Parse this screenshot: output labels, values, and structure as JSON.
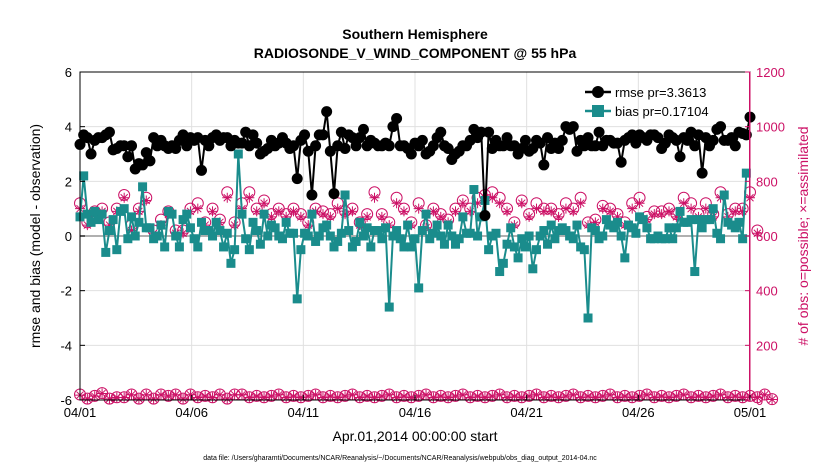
{
  "chart_data": {
    "type": "line",
    "title_line1": "Southern Hemisphere",
    "title_line2": "RADIOSONDE_V_WIND_COMPONENT @ 55 hPa",
    "xlabel": "Apr.01,2014 00:00:00 start",
    "ylabel_left": "rmse and bias (model - observation)",
    "ylabel_right": "# of obs: o=possible; ×=assimilated",
    "footnote": "data file: /Users/gharamti/Documents/NCAR/Reanalysis/~/Documents/NCAR/Reanalysis/webpub/obs_diag_output_2014-04.nc",
    "xlim": [
      0,
      30
    ],
    "x_ticks": [
      0,
      5,
      10,
      15,
      20,
      25,
      30
    ],
    "x_tick_labels": [
      "04/01",
      "04/06",
      "04/11",
      "04/16",
      "04/21",
      "04/26",
      "05/01"
    ],
    "ylim_left": [
      -6,
      6
    ],
    "y_ticks_left": [
      -6,
      -4,
      -2,
      0,
      2,
      4,
      6
    ],
    "y_tick_labels_left": [
      "-6",
      "-4",
      "-2",
      "0",
      "2",
      "4",
      "6"
    ],
    "ylim_right": [
      0,
      1200
    ],
    "y_ticks_right": [
      0,
      200,
      400,
      600,
      800,
      1000,
      1200
    ],
    "y_tick_labels_right": [
      "0",
      "200",
      "400",
      "600",
      "800",
      "1000",
      "1200"
    ],
    "grid": true,
    "legend_position": "top-right",
    "colors": {
      "rmse": "#000000",
      "bias": "#1a8c8c",
      "obs": "#cc1166",
      "zero_line": "#b0b0b0",
      "grid": "#e0e0e0",
      "axis": "#000000"
    },
    "series": [
      {
        "name": "rmse",
        "legend_label": "rmse pr=3.3613",
        "values": [
          3.35,
          3.7,
          3.6,
          3.0,
          3.5,
          3.6,
          3.6,
          3.7,
          3.8,
          3.15,
          3.2,
          3.3,
          3.3,
          2.9,
          3.3,
          2.45,
          2.65,
          2.6,
          3.05,
          2.75,
          3.6,
          3.3,
          3.5,
          3.3,
          3.2,
          3.3,
          3.2,
          3.5,
          3.7,
          3.3,
          3.6,
          3.5,
          3.6,
          2.4,
          3.5,
          3.3,
          3.6,
          3.7,
          3.5,
          3.6,
          3.6,
          3.3,
          3.5,
          3.4,
          3.4,
          3.8,
          3.3,
          3.7,
          3.4,
          3.0,
          3.1,
          3.2,
          3.5,
          3.3,
          3.4,
          3.6,
          3.4,
          3.2,
          3.3,
          2.1,
          3.5,
          3.7,
          3.1,
          1.5,
          3.3,
          3.7,
          3.7,
          4.55,
          3.1,
          1.55,
          3.3,
          3.8,
          3.2,
          3.7,
          3.6,
          3.3,
          3.6,
          3.9,
          3.3,
          3.5,
          3.4,
          3.3,
          3.3,
          3.4,
          3.3,
          4.0,
          4.3,
          3.3,
          3.3,
          3.2,
          3.0,
          3.4,
          3.3,
          3.5,
          3.0,
          3.1,
          3.3,
          3.6,
          3.8,
          3.3,
          3.2,
          2.8,
          3.0,
          3.1,
          3.3,
          3.3,
          3.5,
          3.9,
          3.6,
          3.8,
          0.75,
          3.8,
          3.2,
          3.5,
          3.3,
          3.3,
          3.6,
          3.3,
          3.3,
          3.0,
          3.2,
          3.5,
          3.1,
          3.2,
          3.5,
          3.4,
          2.6,
          3.6,
          3.2,
          3.4,
          3.2,
          3.5,
          4.0,
          3.9,
          4.0,
          3.1,
          3.5,
          3.3,
          3.6,
          3.3,
          3.3,
          3.8,
          3.3,
          3.5,
          3.5,
          3.4,
          3.4,
          2.7,
          3.5,
          3.6,
          3.7,
          3.4,
          3.7,
          3.6,
          3.5,
          3.7,
          3.7,
          3.6,
          3.2,
          3.4,
          3.7,
          3.6,
          3.5,
          2.9,
          3.6,
          3.5,
          3.8,
          3.3,
          3.7,
          2.3,
          3.6,
          3.3,
          3.5,
          3.9,
          4.0,
          3.5,
          3.5,
          3.6,
          3.3,
          3.8,
          3.75,
          3.7,
          4.35
        ]
      },
      {
        "name": "bias",
        "legend_label": "bias pr=0.17104",
        "values": [
          0.7,
          2.2,
          0.8,
          0.5,
          0.9,
          0.6,
          0.8,
          -0.6,
          0.2,
          0.6,
          -0.5,
          0.9,
          1.0,
          -0.1,
          0.7,
          0.0,
          0.5,
          1.8,
          0.3,
          0.3,
          -0.1,
          0.0,
          0.4,
          -0.4,
          0.9,
          0.8,
          0.0,
          -0.4,
          0.6,
          0.8,
          0.3,
          -0.1,
          -0.4,
          0.5,
          0.2,
          0.2,
          0.0,
          0.5,
          0.2,
          -0.4,
          0.1,
          -1.0,
          -0.5,
          3.0,
          0.8,
          -0.1,
          -0.5,
          0.5,
          0.2,
          -0.3,
          0.8,
          0.0,
          0.4,
          0.3,
          0.0,
          -0.1,
          0.5,
          0.1,
          0.1,
          -2.3,
          -0.5,
          0.1,
          0.0,
          0.8,
          -0.2,
          0.0,
          0.3,
          0.4,
          0.0,
          -0.4,
          -0.2,
          0.1,
          1.5,
          0.2,
          -0.4,
          -0.2,
          0.5,
          0.0,
          0.3,
          -0.4,
          0.2,
          0.2,
          -0.1,
          0.3,
          -2.6,
          0.0,
          0.2,
          -0.1,
          -0.4,
          0.4,
          -0.4,
          -0.1,
          -1.9,
          0.2,
          0.8,
          -0.1,
          0.1,
          0.4,
          0.0,
          -0.3,
          0.4,
          0.0,
          -0.3,
          -0.1,
          0.7,
          0.1,
          0.1,
          1.7,
          0.0,
          0.7,
          1.3,
          -0.5,
          0.0,
          0.1,
          -1.3,
          -1.0,
          -0.3,
          0.3,
          -0.4,
          -0.8,
          -0.1,
          -0.4,
          0.0,
          -1.2,
          -0.5,
          0.0,
          0.2,
          -0.3,
          0.4,
          -0.1,
          0.2,
          0.3,
          0.2,
          0.0,
          -0.1,
          0.4,
          -0.4,
          -0.5,
          -3.0,
          0.3,
          0.2,
          -0.1,
          0.0,
          0.6,
          0.4,
          0.3,
          0.5,
          0.0,
          -0.8,
          0.4,
          0.3,
          0.1,
          0.7,
          0.6,
          0.3,
          -0.1,
          -0.1,
          0.0,
          -0.1,
          -0.1,
          0.3,
          -0.1,
          0.3,
          0.9,
          0.5,
          0.5,
          0.6,
          -1.3,
          0.6,
          0.3,
          0.6,
          0.6,
          1.0,
          0.1,
          -0.1,
          1.5,
          0.5,
          0.4,
          0.3,
          0.5,
          -0.1,
          2.3
        ]
      },
      {
        "name": "obs_possible",
        "values": [
          20,
          10,
          5,
          10,
          15,
          20,
          25,
          20,
          5,
          20,
          10,
          5,
          10,
          15,
          20,
          10,
          5,
          10,
          20,
          15,
          5,
          10,
          20,
          25,
          15,
          10,
          20,
          15,
          5,
          10,
          20,
          25,
          10,
          20,
          15,
          5,
          10,
          15,
          20,
          10,
          5,
          10,
          20,
          25,
          20,
          15,
          10,
          20,
          15,
          5,
          10,
          20,
          15,
          10,
          20,
          25,
          10,
          20,
          15,
          5,
          10,
          20,
          15,
          10,
          20,
          25,
          10,
          20,
          15,
          5,
          10,
          20,
          15,
          10,
          20,
          25,
          10,
          20,
          15,
          5,
          10,
          20,
          15,
          10,
          20,
          25,
          10,
          20,
          15,
          5,
          10,
          20,
          15,
          10,
          20,
          25,
          10,
          20,
          15,
          5,
          10,
          20,
          15,
          10,
          20,
          25,
          10,
          20,
          15,
          5,
          10,
          20,
          15,
          10,
          20,
          25,
          10,
          20,
          15,
          5,
          10,
          20,
          15,
          10,
          20,
          25,
          10,
          20,
          15,
          5,
          10,
          20,
          15,
          10,
          20,
          25,
          10,
          20,
          15,
          5,
          10,
          20,
          15,
          10,
          20,
          25,
          10,
          20,
          15,
          5,
          10,
          20,
          15,
          10,
          20,
          25,
          10,
          20,
          15,
          5,
          10,
          20,
          15,
          10,
          20,
          25,
          10,
          20,
          15,
          5,
          10,
          20,
          15,
          10,
          20,
          25,
          10,
          20,
          15,
          5,
          10,
          20,
          15,
          5,
          10,
          30,
          20,
          5,
          3
        ]
      },
      {
        "name": "obs_assimilated",
        "values": [
          18,
          9,
          4,
          9,
          14,
          19,
          24,
          19,
          4,
          19,
          9,
          4,
          9,
          14,
          19,
          9,
          4,
          9,
          19,
          14,
          4,
          9,
          19,
          24,
          14,
          9,
          19,
          14,
          4,
          9,
          19,
          24,
          9,
          19,
          14,
          4,
          9,
          14,
          19,
          9,
          4,
          9,
          19,
          24,
          19,
          14,
          9,
          19,
          14,
          4,
          9,
          19,
          14,
          9,
          19,
          24,
          9,
          19,
          14,
          4,
          9,
          19,
          14,
          9,
          19,
          24,
          9,
          19,
          14,
          4,
          9,
          19,
          14,
          9,
          19,
          24,
          9,
          19,
          14,
          4,
          9,
          19,
          14,
          9,
          19,
          24,
          9,
          19,
          14,
          4,
          9,
          19,
          14,
          9,
          19,
          24,
          9,
          19,
          14,
          4,
          9,
          19,
          14,
          9,
          19,
          24,
          9,
          19,
          14,
          4,
          9,
          19,
          14,
          9,
          19,
          24,
          9,
          19,
          14,
          4,
          9,
          19,
          14,
          9,
          19,
          24,
          9,
          19,
          14,
          4,
          9,
          19,
          14,
          9,
          19,
          24,
          9,
          19,
          14,
          4,
          9,
          19,
          14,
          9,
          19,
          24,
          9,
          19,
          14,
          4,
          9,
          19,
          14,
          9,
          19,
          24,
          9,
          19,
          14,
          4,
          9,
          19,
          14,
          9,
          19,
          24,
          9,
          19,
          14,
          4,
          9,
          19,
          14,
          9,
          19,
          24,
          9,
          19,
          14,
          4,
          9,
          19,
          14,
          4,
          9,
          29,
          19,
          4,
          2
        ]
      },
      {
        "name": "obs_possible_upper",
        "values": [
          720,
          690,
          650,
          710,
          690,
          680,
          700,
          680,
          650,
          720,
          700,
          690,
          750,
          690,
          640,
          660,
          700,
          710,
          740,
          730,
          620,
          650,
          660,
          630,
          690,
          660,
          620,
          720,
          620,
          650,
          700,
          760,
          720,
          690,
          650,
          700,
          700,
          720,
          660,
          730,
          760,
          680,
          650,
          700,
          720,
          770,
          760,
          710,
          700,
          660,
          730,
          790,
          680,
          720,
          700,
          620,
          680,
          650,
          700,
          710,
          680,
          690,
          650,
          640,
          700,
          760,
          690,
          700,
          680,
          670,
          720,
          700,
          690,
          680,
          700,
          730,
          650,
          690,
          680,
          740,
          760,
          700,
          680,
          680,
          650,
          690,
          740,
          690,
          700,
          710,
          650,
          700,
          720,
          650,
          640,
          720,
          700,
          760,
          680,
          640,
          660,
          700,
          700,
          720,
          730,
          660,
          700,
          720,
          740,
          700,
          750,
          720,
          760,
          650,
          740,
          670,
          700,
          690,
          650,
          760,
          730,
          740,
          680,
          700,
          720,
          720,
          700,
          700,
          700,
          690,
          680,
          710,
          720,
          730,
          700,
          720,
          740,
          690,
          650,
          700,
          660,
          700,
          710,
          660,
          700,
          720,
          680,
          640,
          650,
          680,
          720,
          700,
          740,
          720,
          670,
          700,
          690,
          720,
          690,
          720,
          700,
          720,
          680,
          700,
          740,
          720,
          720,
          650,
          680,
          750,
          720,
          700,
          680,
          720,
          760,
          700,
          680,
          650,
          700,
          720,
          700,
          680,
          760,
          720,
          620
        ]
      },
      {
        "name": "obs_assimilated_upper",
        "values": [
          700,
          670,
          640,
          700,
          680,
          670,
          690,
          670,
          640,
          700,
          690,
          680,
          740,
          680,
          620,
          650,
          690,
          700,
          730,
          720,
          610,
          640,
          640,
          620,
          680,
          650,
          610,
          700,
          610,
          640,
          690,
          740,
          700,
          680,
          640,
          690,
          690,
          700,
          650,
          710,
          740,
          670,
          640,
          690,
          700,
          760,
          740,
          700,
          690,
          650,
          720,
          770,
          670,
          700,
          690,
          610,
          670,
          640,
          690,
          700,
          670,
          680,
          640,
          630,
          690,
          740,
          680,
          690,
          670,
          660,
          700,
          690,
          680,
          670,
          690,
          720,
          640,
          680,
          670,
          720,
          740,
          690,
          670,
          670,
          640,
          680,
          720,
          680,
          690,
          700,
          640,
          690,
          700,
          640,
          630,
          700,
          690,
          740,
          670,
          630,
          650,
          690,
          690,
          700,
          720,
          650,
          690,
          700,
          720,
          690,
          740,
          700,
          740,
          640,
          720,
          660,
          690,
          680,
          640,
          740,
          720,
          720,
          670,
          690,
          700,
          700,
          690,
          690,
          690,
          680,
          670,
          700,
          700,
          720,
          690,
          700,
          720,
          680,
          640,
          690,
          650,
          690,
          700,
          650,
          690,
          700,
          670,
          630,
          640,
          670,
          700,
          690,
          720,
          700,
          660,
          690,
          680,
          700,
          680,
          700,
          690,
          700,
          670,
          690,
          720,
          700,
          700,
          640,
          670,
          740,
          700,
          690,
          670,
          700,
          740,
          690,
          670,
          640,
          690,
          700,
          690,
          670,
          740,
          700,
          610
        ]
      }
    ]
  }
}
